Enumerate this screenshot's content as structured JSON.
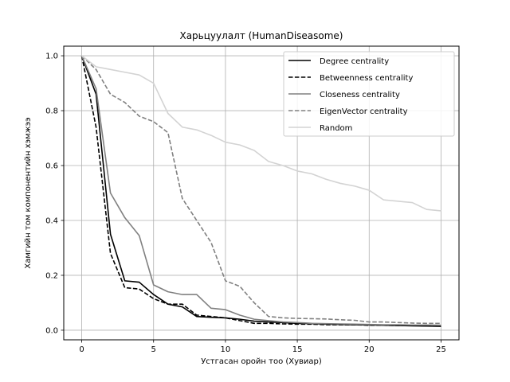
{
  "chart_data": {
    "type": "line",
    "title": "Харьцуулалт (HumanDiseasome)",
    "xlabel": "Устгасан оройн тоо (Хувиар)",
    "ylabel": "Хамгийн том компонентийн хэмжээ",
    "xlim": [
      -1.25,
      26.25
    ],
    "ylim": [
      -0.035,
      1.035
    ],
    "xticks": [
      0,
      5,
      10,
      15,
      20,
      25
    ],
    "yticks": [
      0.0,
      0.2,
      0.4,
      0.6,
      0.8,
      1.0
    ],
    "xtick_labels": [
      "0",
      "5",
      "10",
      "15",
      "20",
      "25"
    ],
    "ytick_labels": [
      "0.0",
      "0.2",
      "0.4",
      "0.6",
      "0.8",
      "1.0"
    ],
    "grid": true,
    "legend_position": "top-right",
    "x": [
      0,
      1,
      2,
      3,
      4,
      5,
      6,
      7,
      8,
      9,
      10,
      11,
      12,
      13,
      14,
      15,
      16,
      17,
      18,
      19,
      20,
      21,
      22,
      23,
      24,
      25
    ],
    "series": [
      {
        "name": "Degree centrality",
        "color": "#000000",
        "dash": "solid",
        "values": [
          1.0,
          0.86,
          0.35,
          0.18,
          0.175,
          0.13,
          0.095,
          0.085,
          0.05,
          0.047,
          0.045,
          0.04,
          0.033,
          0.03,
          0.028,
          0.025,
          0.024,
          0.022,
          0.021,
          0.02,
          0.019,
          0.018,
          0.017,
          0.016,
          0.015,
          0.014
        ]
      },
      {
        "name": "Betweenness centrality",
        "color": "#000000",
        "dash": "dashed",
        "values": [
          1.0,
          0.74,
          0.28,
          0.155,
          0.15,
          0.115,
          0.095,
          0.095,
          0.055,
          0.05,
          0.045,
          0.035,
          0.025,
          0.025,
          0.023,
          0.022,
          0.022,
          0.02,
          0.02,
          0.02,
          0.018,
          0.018,
          0.017,
          0.017,
          0.016,
          0.015
        ]
      },
      {
        "name": "Closeness centrality",
        "color": "#808080",
        "dash": "solid",
        "values": [
          1.0,
          0.88,
          0.5,
          0.41,
          0.345,
          0.165,
          0.14,
          0.13,
          0.13,
          0.08,
          0.075,
          0.055,
          0.04,
          0.035,
          0.03,
          0.028,
          0.025,
          0.024,
          0.023,
          0.022,
          0.021,
          0.02,
          0.02,
          0.019,
          0.019,
          0.018
        ]
      },
      {
        "name": "EigenVector centrality",
        "color": "#808080",
        "dash": "dashed",
        "values": [
          1.0,
          0.95,
          0.86,
          0.83,
          0.78,
          0.76,
          0.72,
          0.48,
          0.4,
          0.32,
          0.18,
          0.16,
          0.1,
          0.05,
          0.045,
          0.043,
          0.042,
          0.041,
          0.038,
          0.036,
          0.03,
          0.03,
          0.028,
          0.026,
          0.025,
          0.025
        ]
      },
      {
        "name": "Random",
        "color": "#d3d3d3",
        "dash": "solid",
        "values": [
          1.0,
          0.96,
          0.95,
          0.94,
          0.93,
          0.9,
          0.79,
          0.74,
          0.73,
          0.71,
          0.685,
          0.675,
          0.655,
          0.615,
          0.6,
          0.58,
          0.57,
          0.55,
          0.535,
          0.525,
          0.51,
          0.475,
          0.47,
          0.465,
          0.44,
          0.435
        ]
      }
    ]
  }
}
